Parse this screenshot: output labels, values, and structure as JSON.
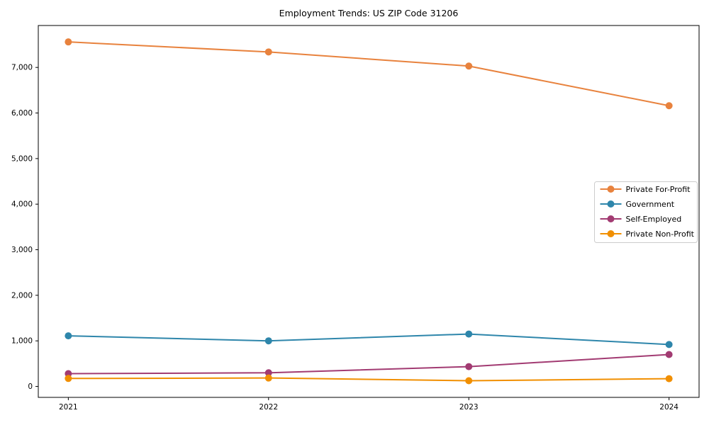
{
  "chart_data": {
    "type": "line",
    "title": "Employment Trends: US ZIP Code 31206",
    "xlabel": "",
    "ylabel": "",
    "x": [
      2021,
      2022,
      2023,
      2024
    ],
    "x_tick_labels": [
      "2021",
      "2022",
      "2023",
      "2024"
    ],
    "y_ticks": [
      0,
      1000,
      2000,
      3000,
      4000,
      5000,
      6000,
      7000
    ],
    "y_tick_labels": [
      "0",
      "1,000",
      "2,000",
      "3,000",
      "4,000",
      "5,000",
      "6,000",
      "7,000"
    ],
    "xlim": [
      2020.85,
      2024.15
    ],
    "ylim": [
      -240,
      7920
    ],
    "grid": false,
    "marker": "circle",
    "legend_position": "center-right",
    "legend_border_color": "#cccccc",
    "axis_color": "#000000",
    "background_color": "#ffffff",
    "series": [
      {
        "name": "Private For-Profit",
        "color": "#E8823D",
        "values": [
          7560,
          7340,
          7030,
          6160
        ]
      },
      {
        "name": "Government",
        "color": "#2E86AB",
        "values": [
          1110,
          1000,
          1150,
          920
        ]
      },
      {
        "name": "Self-Employed",
        "color": "#A23B72",
        "values": [
          280,
          300,
          435,
          700
        ]
      },
      {
        "name": "Private Non-Profit",
        "color": "#F18F01",
        "values": [
          175,
          185,
          125,
          170
        ]
      }
    ]
  }
}
